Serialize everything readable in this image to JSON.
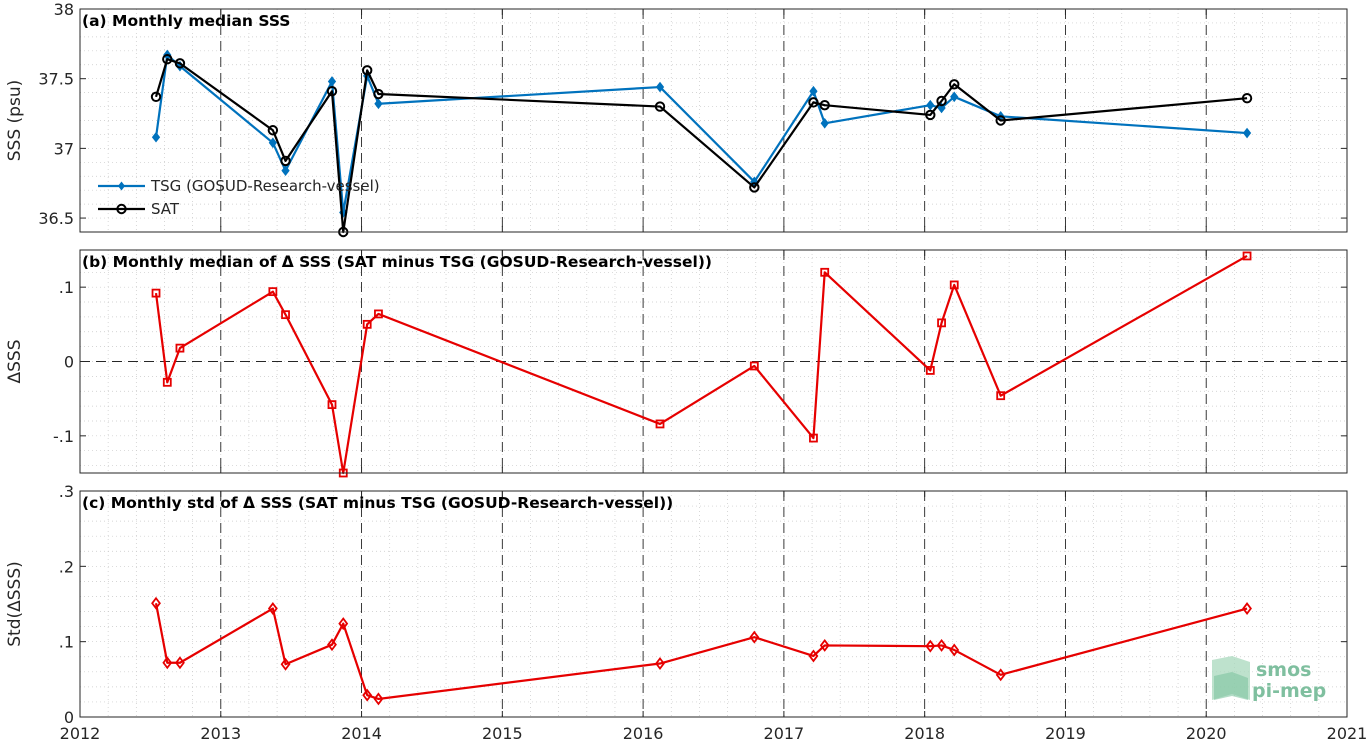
{
  "chart_data": [
    {
      "type": "line",
      "title": "(a) Monthly median SSS",
      "ylabel": "SSS (psu)",
      "xlim": [
        2012,
        2021
      ],
      "ylim": [
        36.4,
        38
      ],
      "yticks": [
        36.5,
        37,
        37.5,
        38
      ],
      "grid": true,
      "legend_placement": "bottom-left",
      "series": [
        {
          "name": "TSG (GOSUD-Research-vessel)",
          "color": "#0072BD",
          "marker": "diamond",
          "x": [
            2012.54,
            2012.62,
            2012.71,
            2013.37,
            2013.46,
            2013.79,
            2013.87,
            2014.04,
            2014.12,
            2016.12,
            2016.79,
            2017.21,
            2017.29,
            2018.04,
            2018.12,
            2018.21,
            2018.54,
            2020.29
          ],
          "y": [
            37.08,
            37.67,
            37.59,
            37.04,
            36.84,
            37.48,
            36.54,
            37.52,
            37.32,
            37.44,
            36.76,
            37.41,
            37.18,
            37.31,
            37.29,
            37.37,
            37.23,
            37.11
          ]
        },
        {
          "name": "SAT",
          "color": "#000000",
          "marker": "circle",
          "x": [
            2012.54,
            2012.62,
            2012.71,
            2013.37,
            2013.46,
            2013.79,
            2013.87,
            2014.04,
            2014.12,
            2016.12,
            2016.79,
            2017.21,
            2017.29,
            2018.04,
            2018.12,
            2018.21,
            2018.54,
            2020.29
          ],
          "y": [
            37.37,
            37.64,
            37.61,
            37.13,
            36.91,
            37.41,
            36.4,
            37.56,
            37.39,
            37.3,
            36.72,
            37.33,
            37.31,
            37.24,
            37.34,
            37.46,
            37.2,
            37.36
          ]
        }
      ]
    },
    {
      "type": "line",
      "title": "(b) Monthly median of Δ SSS (SAT minus TSG (GOSUD-Research-vessel))",
      "ylabel": "ΔSSS",
      "xlim": [
        2012,
        2021
      ],
      "ylim": [
        -0.15,
        0.15
      ],
      "yticks": [
        -0.1,
        0,
        0.1
      ],
      "grid": true,
      "series": [
        {
          "name": "",
          "color": "#E60000",
          "marker": "square",
          "x": [
            2012.54,
            2012.62,
            2012.71,
            2013.37,
            2013.46,
            2013.79,
            2013.87,
            2014.04,
            2014.12,
            2016.12,
            2016.79,
            2017.21,
            2017.29,
            2018.04,
            2018.12,
            2018.21,
            2018.54,
            2020.29
          ],
          "y": [
            0.092,
            -0.028,
            0.018,
            0.094,
            0.063,
            -0.058,
            -0.15,
            0.05,
            0.064,
            -0.084,
            -0.006,
            -0.103,
            0.12,
            -0.012,
            0.052,
            0.103,
            -0.046,
            0.142
          ]
        }
      ]
    },
    {
      "type": "line",
      "title": "(c) Monthly std of Δ SSS (SAT minus TSG (GOSUD-Research-vessel))",
      "ylabel": "Std(ΔSSS)",
      "xlabel": "",
      "xlim": [
        2012,
        2021
      ],
      "ylim": [
        0,
        0.3
      ],
      "yticks": [
        0,
        0.1,
        0.2,
        0.3
      ],
      "xticks": [
        2012,
        2013,
        2014,
        2015,
        2016,
        2017,
        2018,
        2019,
        2020,
        2021
      ],
      "grid": true,
      "series": [
        {
          "name": "",
          "color": "#E60000",
          "marker": "diamond-open",
          "x": [
            2012.54,
            2012.62,
            2012.71,
            2013.37,
            2013.46,
            2013.79,
            2013.87,
            2014.04,
            2014.12,
            2016.12,
            2016.79,
            2017.21,
            2017.29,
            2018.04,
            2018.12,
            2018.21,
            2018.54,
            2020.29
          ],
          "y": [
            0.151,
            0.072,
            0.072,
            0.144,
            0.07,
            0.096,
            0.124,
            0.029,
            0.024,
            0.071,
            0.106,
            0.081,
            0.095,
            0.094,
            0.095,
            0.089,
            0.056,
            0.144
          ]
        }
      ]
    }
  ],
  "logo": {
    "line1": "smos",
    "line2": "pi-mep"
  }
}
